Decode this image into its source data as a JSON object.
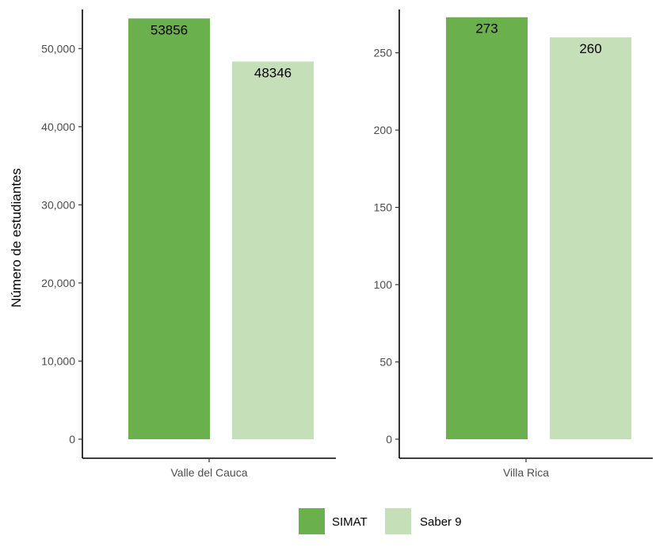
{
  "chart_data": [
    {
      "type": "bar",
      "categories": [
        "Valle del Cauca"
      ],
      "series": [
        {
          "name": "SIMAT",
          "values": [
            53856
          ]
        },
        {
          "name": "Saber 9",
          "values": [
            48346
          ]
        }
      ],
      "data_labels": [
        "53856",
        "48346"
      ],
      "ylabel": "Número de estudiantes",
      "ylim": [
        0,
        55000
      ],
      "yticks": [
        0,
        10000,
        20000,
        30000,
        40000,
        50000
      ],
      "ytick_labels": [
        "0",
        "10,000",
        "20,000",
        "30,000",
        "40,000",
        "50,000"
      ],
      "grid": false
    },
    {
      "type": "bar",
      "categories": [
        "Villa Rica"
      ],
      "series": [
        {
          "name": "SIMAT",
          "values": [
            273
          ]
        },
        {
          "name": "Saber 9",
          "values": [
            260
          ]
        }
      ],
      "data_labels": [
        "273",
        "260"
      ],
      "ylim": [
        0,
        278
      ],
      "yticks": [
        0,
        50,
        100,
        150,
        200,
        250
      ],
      "ytick_labels": [
        "0",
        "50",
        "100",
        "150",
        "200",
        "250"
      ],
      "grid": false
    }
  ],
  "legend": {
    "placement": "bottom",
    "items": [
      {
        "label": "SIMAT",
        "color": "#6ab04c"
      },
      {
        "label": "Saber 9",
        "color": "#c5e0b9"
      }
    ]
  },
  "colors": {
    "simat": "#6ab04c",
    "saber9": "#c5e0b9",
    "axis": "#000000"
  }
}
